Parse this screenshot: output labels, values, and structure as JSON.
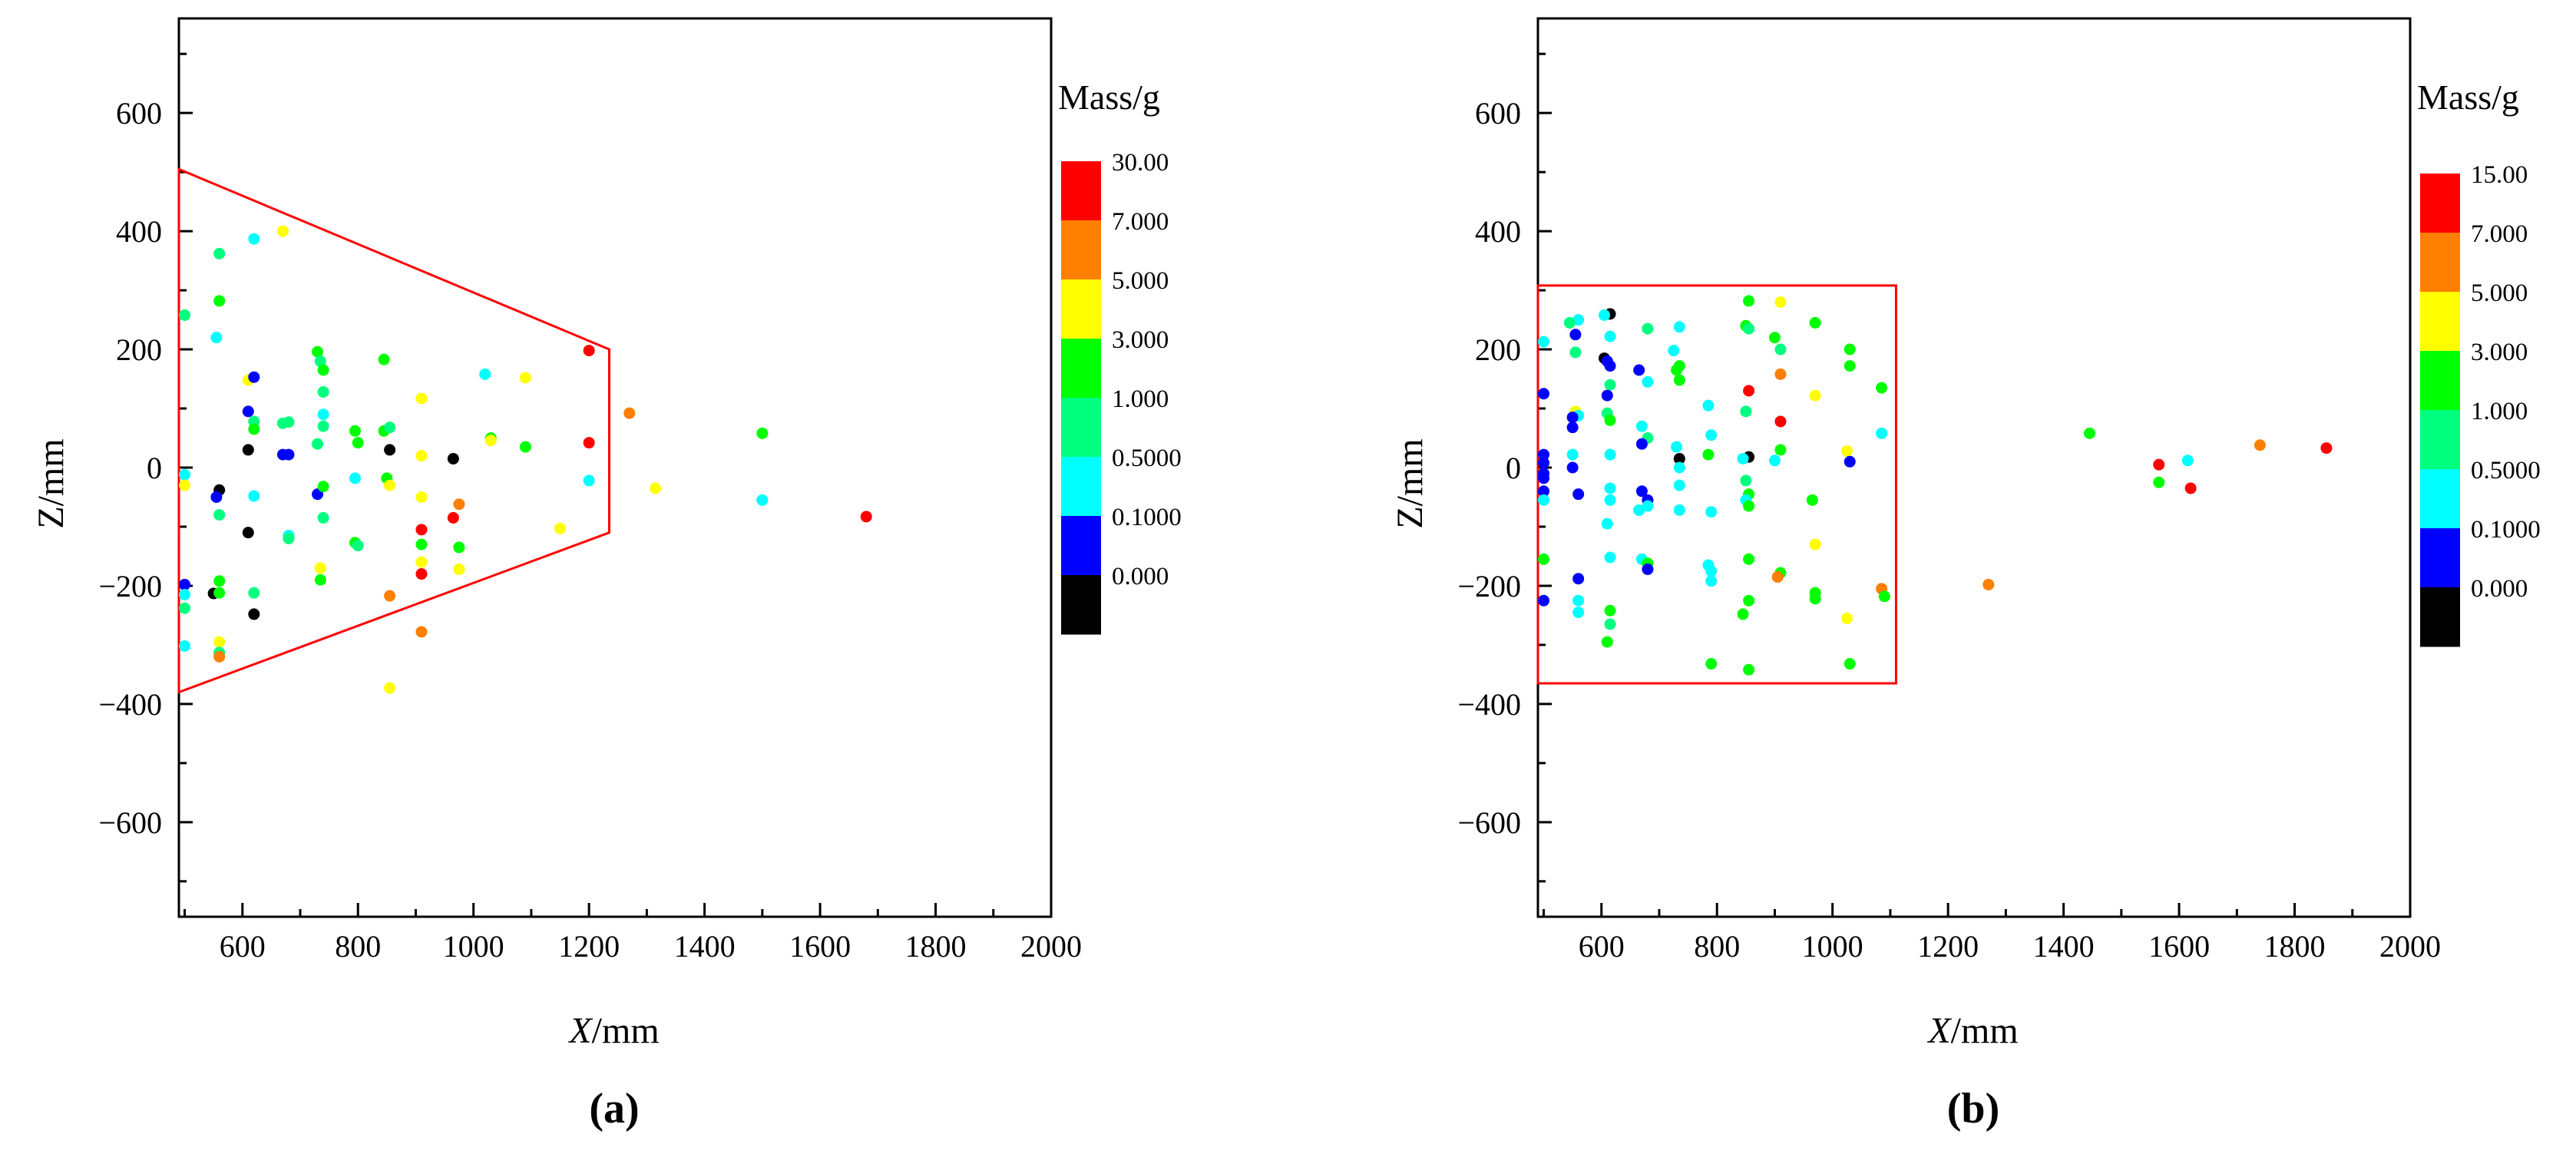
{
  "chart_data": [
    {
      "type": "scatter",
      "panel_label": "a",
      "xlabel_italic": "X",
      "xlabel_unit": "/mm",
      "ylabel": "Z/mm",
      "xlim": [
        490,
        2000
      ],
      "ylim": [
        -760,
        760
      ],
      "x_ticks": [
        600,
        800,
        1000,
        1200,
        1400,
        1600,
        1800,
        2000
      ],
      "y_ticks": [
        600,
        400,
        200,
        0,
        -200,
        -400,
        -600
      ],
      "colorbar": {
        "title": "Mass/g",
        "colors": [
          "#ff0000",
          "#ff7f00",
          "#ffff00",
          "#00ff00",
          "#00ff7f",
          "#00ffff",
          "#0000ff",
          "#000000"
        ],
        "labels": [
          "30.00",
          "7.000",
          "5.000",
          "3.000",
          "1.000",
          "0.5000",
          "0.1000",
          "0.000"
        ]
      },
      "region": {
        "color": "#ff0000",
        "points": [
          [
            490,
            505
          ],
          [
            1235,
            200
          ],
          [
            1235,
            -110
          ],
          [
            490,
            -380
          ]
        ]
      },
      "points": [
        {
          "x": 500,
          "y": 258,
          "c": 4
        },
        {
          "x": 555,
          "y": 220,
          "c": 5
        },
        {
          "x": 560,
          "y": 362,
          "c": 4
        },
        {
          "x": 560,
          "y": 282,
          "c": 3
        },
        {
          "x": 620,
          "y": 387,
          "c": 5
        },
        {
          "x": 670,
          "y": 400,
          "c": 2
        },
        {
          "x": 730,
          "y": 196,
          "c": 3
        },
        {
          "x": 735,
          "y": 180,
          "c": 4
        },
        {
          "x": 740,
          "y": 165,
          "c": 3
        },
        {
          "x": 845,
          "y": 183,
          "c": 3
        },
        {
          "x": 1200,
          "y": 198,
          "c": 0
        },
        {
          "x": 1020,
          "y": 158,
          "c": 5
        },
        {
          "x": 1090,
          "y": 152,
          "c": 2
        },
        {
          "x": 610,
          "y": 148,
          "c": 2
        },
        {
          "x": 620,
          "y": 153,
          "c": 6
        },
        {
          "x": 740,
          "y": 128,
          "c": 4
        },
        {
          "x": 910,
          "y": 117,
          "c": 2
        },
        {
          "x": 610,
          "y": 95,
          "c": 6
        },
        {
          "x": 740,
          "y": 90,
          "c": 5
        },
        {
          "x": 1270,
          "y": 92,
          "c": 1
        },
        {
          "x": 620,
          "y": 78,
          "c": 4
        },
        {
          "x": 620,
          "y": 65,
          "c": 3
        },
        {
          "x": 670,
          "y": 75,
          "c": 4
        },
        {
          "x": 680,
          "y": 77,
          "c": 4
        },
        {
          "x": 740,
          "y": 70,
          "c": 4
        },
        {
          "x": 795,
          "y": 62,
          "c": 3
        },
        {
          "x": 845,
          "y": 62,
          "c": 3
        },
        {
          "x": 855,
          "y": 68,
          "c": 4
        },
        {
          "x": 1030,
          "y": 50,
          "c": 3
        },
        {
          "x": 1030,
          "y": 46,
          "c": 2
        },
        {
          "x": 1500,
          "y": 58,
          "c": 3
        },
        {
          "x": 730,
          "y": 40,
          "c": 4
        },
        {
          "x": 800,
          "y": 42,
          "c": 3
        },
        {
          "x": 1200,
          "y": 42,
          "c": 0
        },
        {
          "x": 1090,
          "y": 35,
          "c": 3
        },
        {
          "x": 610,
          "y": 30,
          "c": 7
        },
        {
          "x": 855,
          "y": 30,
          "c": 7
        },
        {
          "x": 670,
          "y": 22,
          "c": 6
        },
        {
          "x": 680,
          "y": 22,
          "c": 6
        },
        {
          "x": 910,
          "y": 20,
          "c": 2
        },
        {
          "x": 965,
          "y": 15,
          "c": 7
        },
        {
          "x": 500,
          "y": -12,
          "c": 5
        },
        {
          "x": 500,
          "y": -30,
          "c": 2
        },
        {
          "x": 560,
          "y": -38,
          "c": 7
        },
        {
          "x": 555,
          "y": -50,
          "c": 6
        },
        {
          "x": 620,
          "y": -48,
          "c": 5
        },
        {
          "x": 730,
          "y": -45,
          "c": 6
        },
        {
          "x": 740,
          "y": -32,
          "c": 3
        },
        {
          "x": 795,
          "y": -18,
          "c": 5
        },
        {
          "x": 850,
          "y": -18,
          "c": 3
        },
        {
          "x": 855,
          "y": -30,
          "c": 2
        },
        {
          "x": 1200,
          "y": -22,
          "c": 5
        },
        {
          "x": 1315,
          "y": -35,
          "c": 2
        },
        {
          "x": 910,
          "y": -50,
          "c": 2
        },
        {
          "x": 975,
          "y": -62,
          "c": 1
        },
        {
          "x": 1500,
          "y": -55,
          "c": 5
        },
        {
          "x": 1680,
          "y": -83,
          "c": 0
        },
        {
          "x": 560,
          "y": -80,
          "c": 4
        },
        {
          "x": 740,
          "y": -85,
          "c": 4
        },
        {
          "x": 965,
          "y": -85,
          "c": 0
        },
        {
          "x": 1150,
          "y": -103,
          "c": 2
        },
        {
          "x": 910,
          "y": -105,
          "c": 0
        },
        {
          "x": 610,
          "y": -110,
          "c": 7
        },
        {
          "x": 680,
          "y": -115,
          "c": 5
        },
        {
          "x": 680,
          "y": -120,
          "c": 4
        },
        {
          "x": 795,
          "y": -127,
          "c": 3
        },
        {
          "x": 800,
          "y": -132,
          "c": 4
        },
        {
          "x": 910,
          "y": -130,
          "c": 3
        },
        {
          "x": 975,
          "y": -135,
          "c": 3
        },
        {
          "x": 735,
          "y": -170,
          "c": 2
        },
        {
          "x": 910,
          "y": -160,
          "c": 2
        },
        {
          "x": 975,
          "y": -172,
          "c": 2
        },
        {
          "x": 910,
          "y": -180,
          "c": 0
        },
        {
          "x": 735,
          "y": -190,
          "c": 3
        },
        {
          "x": 560,
          "y": -192,
          "c": 3
        },
        {
          "x": 500,
          "y": -198,
          "c": 6
        },
        {
          "x": 500,
          "y": -215,
          "c": 5
        },
        {
          "x": 550,
          "y": -213,
          "c": 7
        },
        {
          "x": 560,
          "y": -212,
          "c": 3
        },
        {
          "x": 620,
          "y": -212,
          "c": 4
        },
        {
          "x": 855,
          "y": -217,
          "c": 1
        },
        {
          "x": 500,
          "y": -238,
          "c": 4
        },
        {
          "x": 620,
          "y": -248,
          "c": 7
        },
        {
          "x": 910,
          "y": -278,
          "c": 1
        },
        {
          "x": 560,
          "y": -295,
          "c": 2
        },
        {
          "x": 500,
          "y": -302,
          "c": 5
        },
        {
          "x": 560,
          "y": -313,
          "c": 4
        },
        {
          "x": 560,
          "y": -320,
          "c": 1
        },
        {
          "x": 855,
          "y": -373,
          "c": 2
        }
      ]
    },
    {
      "type": "scatter",
      "panel_label": "b",
      "xlabel_italic": "X",
      "xlabel_unit": "/mm",
      "ylabel": "Z/mm",
      "xlim": [
        490,
        2000
      ],
      "ylim": [
        -760,
        760
      ],
      "x_ticks": [
        600,
        800,
        1000,
        1200,
        1400,
        1600,
        1800,
        2000
      ],
      "y_ticks": [
        600,
        400,
        200,
        0,
        -200,
        -400,
        -600
      ],
      "colorbar": {
        "title": "Mass/g",
        "colors": [
          "#ff0000",
          "#ff7f00",
          "#ffff00",
          "#00ff00",
          "#00ff7f",
          "#00ffff",
          "#0000ff",
          "#000000"
        ],
        "labels": [
          "15.00",
          "7.000",
          "5.000",
          "3.000",
          "1.000",
          "0.5000",
          "0.1000",
          "0.000"
        ]
      },
      "region": {
        "color": "#ff0000",
        "points": [
          [
            490,
            308
          ],
          [
            1110,
            308
          ],
          [
            1110,
            -365
          ],
          [
            490,
            -365
          ]
        ]
      },
      "points": [
        {
          "x": 910,
          "y": 280,
          "c": 2
        },
        {
          "x": 855,
          "y": 282,
          "c": 3
        },
        {
          "x": 615,
          "y": 260,
          "c": 7
        },
        {
          "x": 605,
          "y": 258,
          "c": 5
        },
        {
          "x": 560,
          "y": 250,
          "c": 5
        },
        {
          "x": 545,
          "y": 245,
          "c": 4
        },
        {
          "x": 850,
          "y": 240,
          "c": 3
        },
        {
          "x": 855,
          "y": 235,
          "c": 4
        },
        {
          "x": 970,
          "y": 245,
          "c": 3
        },
        {
          "x": 735,
          "y": 238,
          "c": 5
        },
        {
          "x": 680,
          "y": 235,
          "c": 4
        },
        {
          "x": 555,
          "y": 225,
          "c": 6
        },
        {
          "x": 615,
          "y": 222,
          "c": 5
        },
        {
          "x": 900,
          "y": 220,
          "c": 3
        },
        {
          "x": 500,
          "y": 213,
          "c": 5
        },
        {
          "x": 1030,
          "y": 200,
          "c": 3
        },
        {
          "x": 910,
          "y": 200,
          "c": 4
        },
        {
          "x": 725,
          "y": 198,
          "c": 5
        },
        {
          "x": 555,
          "y": 195,
          "c": 4
        },
        {
          "x": 605,
          "y": 185,
          "c": 7
        },
        {
          "x": 610,
          "y": 180,
          "c": 6
        },
        {
          "x": 615,
          "y": 172,
          "c": 6
        },
        {
          "x": 735,
          "y": 172,
          "c": 3
        },
        {
          "x": 730,
          "y": 165,
          "c": 3
        },
        {
          "x": 665,
          "y": 165,
          "c": 6
        },
        {
          "x": 1030,
          "y": 172,
          "c": 3
        },
        {
          "x": 910,
          "y": 158,
          "c": 1
        },
        {
          "x": 735,
          "y": 148,
          "c": 3
        },
        {
          "x": 680,
          "y": 145,
          "c": 5
        },
        {
          "x": 615,
          "y": 140,
          "c": 4
        },
        {
          "x": 1085,
          "y": 135,
          "c": 3
        },
        {
          "x": 855,
          "y": 130,
          "c": 0
        },
        {
          "x": 500,
          "y": 125,
          "c": 6
        },
        {
          "x": 610,
          "y": 122,
          "c": 6
        },
        {
          "x": 970,
          "y": 122,
          "c": 2
        },
        {
          "x": 785,
          "y": 105,
          "c": 5
        },
        {
          "x": 850,
          "y": 95,
          "c": 4
        },
        {
          "x": 610,
          "y": 92,
          "c": 4
        },
        {
          "x": 555,
          "y": 95,
          "c": 2
        },
        {
          "x": 560,
          "y": 88,
          "c": 5
        },
        {
          "x": 550,
          "y": 85,
          "c": 6
        },
        {
          "x": 615,
          "y": 80,
          "c": 3
        },
        {
          "x": 910,
          "y": 78,
          "c": 0
        },
        {
          "x": 550,
          "y": 68,
          "c": 6
        },
        {
          "x": 670,
          "y": 70,
          "c": 5
        },
        {
          "x": 1085,
          "y": 58,
          "c": 5
        },
        {
          "x": 790,
          "y": 55,
          "c": 5
        },
        {
          "x": 680,
          "y": 50,
          "c": 4
        },
        {
          "x": 1445,
          "y": 58,
          "c": 3
        },
        {
          "x": 670,
          "y": 40,
          "c": 6
        },
        {
          "x": 1740,
          "y": 38,
          "c": 1
        },
        {
          "x": 1855,
          "y": 33,
          "c": 0
        },
        {
          "x": 910,
          "y": 30,
          "c": 3
        },
        {
          "x": 730,
          "y": 35,
          "c": 5
        },
        {
          "x": 1025,
          "y": 28,
          "c": 2
        },
        {
          "x": 500,
          "y": 22,
          "c": 6
        },
        {
          "x": 550,
          "y": 22,
          "c": 5
        },
        {
          "x": 615,
          "y": 22,
          "c": 5
        },
        {
          "x": 785,
          "y": 22,
          "c": 3
        },
        {
          "x": 735,
          "y": 15,
          "c": 7
        },
        {
          "x": 855,
          "y": 18,
          "c": 7
        },
        {
          "x": 845,
          "y": 15,
          "c": 5
        },
        {
          "x": 900,
          "y": 12,
          "c": 5
        },
        {
          "x": 1030,
          "y": 10,
          "c": 6
        },
        {
          "x": 1565,
          "y": 5,
          "c": 0
        },
        {
          "x": 1615,
          "y": 12,
          "c": 5
        },
        {
          "x": 500,
          "y": 8,
          "c": 6
        },
        {
          "x": 550,
          "y": 0,
          "c": 6
        },
        {
          "x": 735,
          "y": 0,
          "c": 5
        },
        {
          "x": 500,
          "y": -10,
          "c": 6
        },
        {
          "x": 500,
          "y": -18,
          "c": 6
        },
        {
          "x": 850,
          "y": -22,
          "c": 4
        },
        {
          "x": 735,
          "y": -30,
          "c": 5
        },
        {
          "x": 1565,
          "y": -25,
          "c": 3
        },
        {
          "x": 1620,
          "y": -35,
          "c": 0
        },
        {
          "x": 615,
          "y": -35,
          "c": 5
        },
        {
          "x": 670,
          "y": -40,
          "c": 6
        },
        {
          "x": 500,
          "y": -40,
          "c": 6
        },
        {
          "x": 560,
          "y": -45,
          "c": 6
        },
        {
          "x": 855,
          "y": -45,
          "c": 3
        },
        {
          "x": 850,
          "y": -55,
          "c": 5
        },
        {
          "x": 680,
          "y": -55,
          "c": 6
        },
        {
          "x": 615,
          "y": -55,
          "c": 5
        },
        {
          "x": 500,
          "y": -55,
          "c": 5
        },
        {
          "x": 965,
          "y": -55,
          "c": 3
        },
        {
          "x": 855,
          "y": -65,
          "c": 3
        },
        {
          "x": 680,
          "y": -65,
          "c": 5
        },
        {
          "x": 665,
          "y": -72,
          "c": 5
        },
        {
          "x": 735,
          "y": -72,
          "c": 5
        },
        {
          "x": 790,
          "y": -75,
          "c": 5
        },
        {
          "x": 610,
          "y": -95,
          "c": 5
        },
        {
          "x": 970,
          "y": -130,
          "c": 2
        },
        {
          "x": 615,
          "y": -152,
          "c": 5
        },
        {
          "x": 500,
          "y": -155,
          "c": 3
        },
        {
          "x": 670,
          "y": -155,
          "c": 5
        },
        {
          "x": 855,
          "y": -155,
          "c": 3
        },
        {
          "x": 680,
          "y": -162,
          "c": 3
        },
        {
          "x": 785,
          "y": -165,
          "c": 5
        },
        {
          "x": 680,
          "y": -172,
          "c": 6
        },
        {
          "x": 790,
          "y": -175,
          "c": 5
        },
        {
          "x": 910,
          "y": -178,
          "c": 3
        },
        {
          "x": 905,
          "y": -185,
          "c": 1
        },
        {
          "x": 560,
          "y": -188,
          "c": 6
        },
        {
          "x": 790,
          "y": -192,
          "c": 5
        },
        {
          "x": 1270,
          "y": -198,
          "c": 1
        },
        {
          "x": 1085,
          "y": -205,
          "c": 1
        },
        {
          "x": 970,
          "y": -212,
          "c": 3
        },
        {
          "x": 1090,
          "y": -218,
          "c": 3
        },
        {
          "x": 500,
          "y": -225,
          "c": 6
        },
        {
          "x": 560,
          "y": -225,
          "c": 5
        },
        {
          "x": 855,
          "y": -225,
          "c": 3
        },
        {
          "x": 970,
          "y": -222,
          "c": 3
        },
        {
          "x": 615,
          "y": -242,
          "c": 3
        },
        {
          "x": 560,
          "y": -245,
          "c": 5
        },
        {
          "x": 845,
          "y": -248,
          "c": 3
        },
        {
          "x": 1025,
          "y": -255,
          "c": 2
        },
        {
          "x": 615,
          "y": -265,
          "c": 4
        },
        {
          "x": 610,
          "y": -295,
          "c": 3
        },
        {
          "x": 790,
          "y": -332,
          "c": 3
        },
        {
          "x": 1030,
          "y": -332,
          "c": 3
        },
        {
          "x": 855,
          "y": -342,
          "c": 3
        }
      ]
    }
  ]
}
